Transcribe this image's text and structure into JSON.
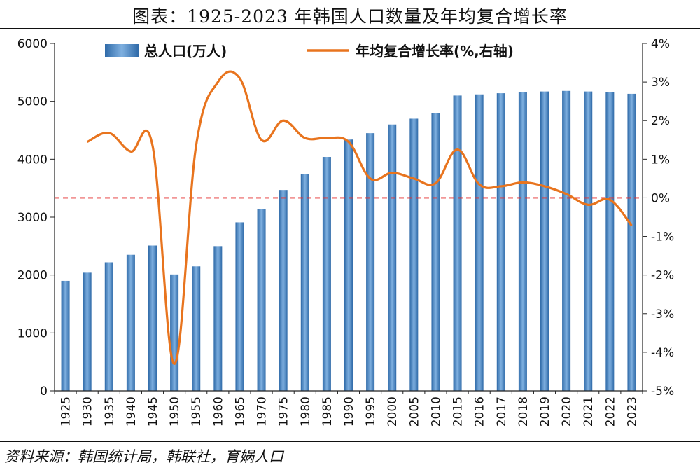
{
  "title": "图表：1925-2023 年韩国人口数量及年均复合增长率",
  "source": "资料来源：韩国统计局，韩联社，育娲人口",
  "colors": {
    "bar": "#4f86c6",
    "bar_dark": "#2f6aa8",
    "line": "#e8741e",
    "zero_line": "#e53030",
    "axis": "#222222"
  },
  "chart_data": {
    "type": "bar",
    "categories": [
      "1925",
      "1930",
      "1935",
      "1940",
      "1945",
      "1950",
      "1955",
      "1960",
      "1965",
      "1970",
      "1975",
      "1980",
      "1985",
      "1990",
      "1995",
      "2000",
      "2005",
      "2010",
      "2015",
      "2016",
      "2017",
      "2018",
      "2019",
      "2020",
      "2021",
      "2022",
      "2023"
    ],
    "series": [
      {
        "name": "总人口(万人)",
        "type": "bar",
        "axis": "left",
        "values": [
          1900,
          2040,
          2220,
          2350,
          2510,
          2010,
          2150,
          2500,
          2910,
          3140,
          3470,
          3740,
          4040,
          4340,
          4450,
          4600,
          4700,
          4800,
          5100,
          5120,
          5140,
          5160,
          5170,
          5180,
          5170,
          5160,
          5130
        ]
      },
      {
        "name": "年均复合增长率(%,右轴)",
        "type": "line",
        "axis": "right",
        "values": [
          null,
          1.45,
          1.68,
          1.2,
          1.35,
          -4.3,
          1.35,
          3.0,
          3.1,
          1.5,
          2.0,
          1.55,
          1.55,
          1.45,
          0.5,
          0.65,
          0.5,
          0.38,
          1.25,
          0.35,
          0.3,
          0.4,
          0.3,
          0.1,
          -0.18,
          -0.05,
          -0.72
        ]
      }
    ],
    "y_left": {
      "min": 0,
      "max": 6000,
      "ticks": [
        0,
        1000,
        2000,
        3000,
        4000,
        5000,
        6000
      ]
    },
    "y_right": {
      "min": -5,
      "max": 4,
      "ticks": [
        "-5%",
        "-4%",
        "-3%",
        "-2%",
        "-1%",
        "0%",
        "1%",
        "2%",
        "3%",
        "4%"
      ]
    },
    "reference_line": {
      "axis": "right",
      "value": 0,
      "style": "dashed"
    },
    "grid": false,
    "legend": {
      "position": "top",
      "entries": [
        "总人口(万人)",
        "年均复合增长率(%,右轴)"
      ]
    },
    "xlabel": "",
    "ylabel": ""
  }
}
